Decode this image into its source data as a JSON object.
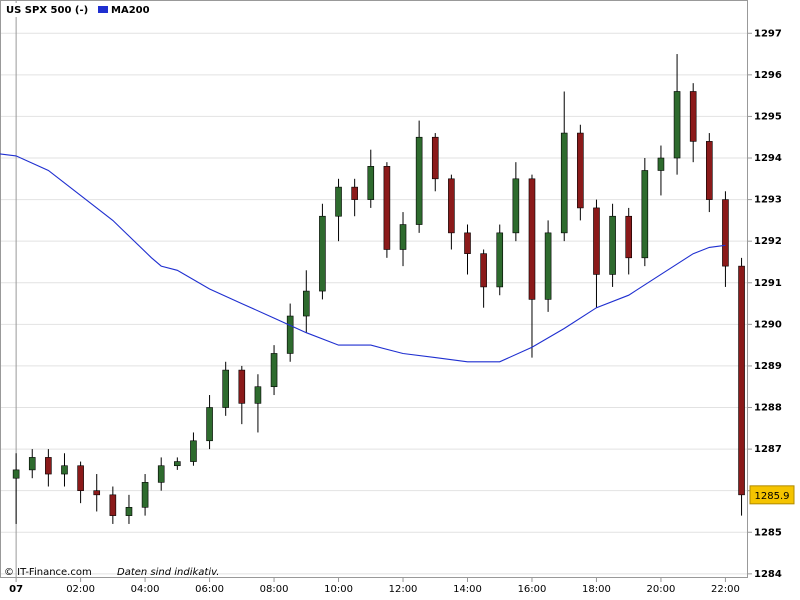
{
  "chart_data": {
    "type": "candlestick",
    "series": [
      {
        "name": "US SPX 500 (-)",
        "up_color": "#2e6b2e",
        "down_color": "#8b1a1a",
        "x": [
          0,
          0.5,
          1,
          1.5,
          2,
          2.5,
          3,
          3.5,
          4,
          4.5,
          5,
          5.5,
          6,
          6.5,
          7,
          7.5,
          8,
          8.5,
          9,
          9.5,
          10,
          10.5,
          11,
          11.5,
          12,
          12.5,
          13,
          13.5,
          14,
          14.5,
          15,
          15.5,
          16,
          16.5,
          17,
          17.5,
          18,
          18.5,
          19,
          19.5,
          20,
          20.5,
          21,
          21.5,
          22,
          22.5
        ],
        "open": [
          1286.3,
          1286.5,
          1286.8,
          1286.4,
          1286.6,
          1286.0,
          1285.9,
          1285.4,
          1285.6,
          1286.2,
          1286.6,
          1286.7,
          1287.2,
          1288.0,
          1288.9,
          1288.1,
          1288.5,
          1289.3,
          1290.2,
          1290.8,
          1292.6,
          1293.3,
          1293.0,
          1293.8,
          1291.8,
          1292.4,
          1294.5,
          1293.5,
          1292.2,
          1291.7,
          1290.9,
          1292.2,
          1293.5,
          1290.6,
          1292.2,
          1294.6,
          1292.8,
          1291.2,
          1292.6,
          1291.6,
          1293.7,
          1294.0,
          1295.6,
          1294.4,
          1293.0,
          1291.4
        ],
        "high": [
          1286.9,
          1287.0,
          1287.0,
          1286.9,
          1286.7,
          1286.4,
          1286.1,
          1285.9,
          1286.4,
          1286.8,
          1286.8,
          1287.4,
          1288.3,
          1289.1,
          1289.0,
          1288.8,
          1289.5,
          1290.5,
          1291.3,
          1292.9,
          1293.5,
          1293.5,
          1294.2,
          1293.9,
          1292.7,
          1294.9,
          1294.6,
          1293.6,
          1292.4,
          1291.8,
          1292.4,
          1293.9,
          1293.6,
          1292.5,
          1295.6,
          1294.8,
          1293.0,
          1292.9,
          1292.8,
          1294.0,
          1294.3,
          1296.5,
          1295.8,
          1294.6,
          1293.2,
          1291.6
        ],
        "low": [
          1285.2,
          1286.3,
          1286.1,
          1286.1,
          1285.7,
          1285.5,
          1285.2,
          1285.2,
          1285.4,
          1286.0,
          1286.5,
          1286.6,
          1287.0,
          1287.8,
          1287.6,
          1287.4,
          1288.3,
          1289.1,
          1289.8,
          1290.6,
          1292.0,
          1292.6,
          1292.8,
          1291.6,
          1291.4,
          1292.2,
          1293.2,
          1291.8,
          1291.2,
          1290.4,
          1290.7,
          1292.0,
          1289.2,
          1290.3,
          1292.0,
          1292.5,
          1290.4,
          1290.9,
          1291.2,
          1291.4,
          1293.1,
          1293.6,
          1293.9,
          1292.7,
          1290.9,
          1285.4
        ],
        "close": [
          1286.5,
          1286.8,
          1286.4,
          1286.6,
          1286.0,
          1285.9,
          1285.4,
          1285.6,
          1286.2,
          1286.6,
          1286.7,
          1287.2,
          1288.0,
          1288.9,
          1288.1,
          1288.5,
          1289.3,
          1290.2,
          1290.8,
          1292.6,
          1293.3,
          1293.0,
          1293.8,
          1291.8,
          1292.4,
          1294.5,
          1293.5,
          1292.2,
          1291.7,
          1290.9,
          1292.2,
          1293.5,
          1290.6,
          1292.2,
          1294.6,
          1292.8,
          1291.2,
          1292.6,
          1291.6,
          1293.7,
          1294.0,
          1295.6,
          1294.4,
          1293.0,
          1291.4,
          1285.9
        ]
      },
      {
        "name": "MA200",
        "color": "#1f2fd0",
        "x": [
          -0.5,
          0,
          1,
          2,
          3,
          4.2,
          4.5,
          5,
          6,
          7,
          8,
          9,
          10,
          11,
          12,
          13,
          14,
          15,
          16,
          17,
          18,
          19,
          20,
          21,
          21.5,
          22
        ],
        "values": [
          1294.1,
          1294.05,
          1293.7,
          1293.1,
          1292.5,
          1291.6,
          1291.4,
          1291.3,
          1290.85,
          1290.5,
          1290.15,
          1289.8,
          1289.5,
          1289.5,
          1289.3,
          1289.2,
          1289.1,
          1289.1,
          1289.45,
          1289.9,
          1290.4,
          1290.7,
          1291.2,
          1291.7,
          1291.85,
          1291.9
        ]
      }
    ],
    "last_price": 1285.9,
    "xlim": [
      -0.5,
      22.7
    ],
    "xticks": [
      {
        "value": 0,
        "label": "07"
      },
      {
        "value": 2,
        "label": "02:00"
      },
      {
        "value": 4,
        "label": "04:00"
      },
      {
        "value": 6,
        "label": "06:00"
      },
      {
        "value": 8,
        "label": "08:00"
      },
      {
        "value": 10,
        "label": "10:00"
      },
      {
        "value": 12,
        "label": "12:00"
      },
      {
        "value": 14,
        "label": "14:00"
      },
      {
        "value": 16,
        "label": "16:00"
      },
      {
        "value": 18,
        "label": "18:00"
      },
      {
        "value": 20,
        "label": "20:00"
      },
      {
        "value": 22,
        "label": "22:00"
      }
    ],
    "ylim": [
      1283.9,
      1297.8
    ],
    "yticks": [
      1284,
      1285,
      1286,
      1287,
      1288,
      1289,
      1290,
      1291,
      1292,
      1293,
      1294,
      1295,
      1296,
      1297
    ],
    "grid": true,
    "source": "© IT-Finance.com",
    "note": "Daten sind indikativ."
  }
}
